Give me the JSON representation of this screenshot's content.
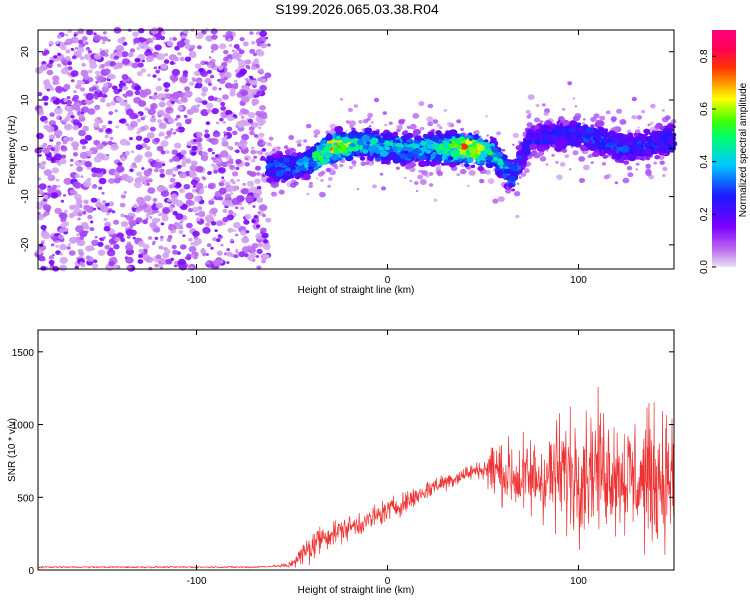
{
  "title": "S199.2026.065.03.38.R04",
  "chart_data": [
    {
      "type": "heatmap",
      "title": "S199.2026.065.03.38.R04",
      "xlabel": "Height of straight line (km)",
      "ylabel": "Frequency (Hz)",
      "xlim": [
        -183,
        150
      ],
      "ylim": [
        -25,
        24.5
      ],
      "xticks": [
        -100,
        0,
        100
      ],
      "yticks": [
        -20,
        -10,
        0,
        10,
        20
      ],
      "colorbar": {
        "label": "Normalized spectral amplitude",
        "range": [
          0,
          0.9
        ],
        "ticks": [
          0.0,
          0.2,
          0.4,
          0.6,
          0.8
        ]
      },
      "signal_center_freq": [
        [
          -62,
          -4
        ],
        [
          -45,
          -4
        ],
        [
          -30,
          0
        ],
        [
          -15,
          1
        ],
        [
          0,
          0
        ],
        [
          20,
          0
        ],
        [
          40,
          0
        ],
        [
          55,
          -1
        ],
        [
          65,
          -6
        ],
        [
          75,
          2
        ],
        [
          100,
          3
        ],
        [
          125,
          0
        ],
        [
          150,
          2
        ]
      ],
      "signal_peak_amplitude": [
        [
          -62,
          0.35
        ],
        [
          -40,
          0.45
        ],
        [
          -28,
          0.85
        ],
        [
          -15,
          0.55
        ],
        [
          5,
          0.5
        ],
        [
          25,
          0.5
        ],
        [
          40,
          0.85
        ],
        [
          60,
          0.45
        ],
        [
          75,
          0.3
        ],
        [
          110,
          0.35
        ],
        [
          150,
          0.35
        ]
      ],
      "noise_region": [
        -183,
        -62
      ]
    },
    {
      "type": "line",
      "xlabel": "Height of straight line (km)",
      "ylabel": "SNR (10 * v/v)",
      "xlim": [
        -183,
        150
      ],
      "ylim": [
        0,
        1650
      ],
      "xticks": [
        -100,
        0,
        100
      ],
      "yticks": [
        0,
        500,
        1000,
        1500
      ],
      "series": [
        {
          "name": "SNR",
          "color": "#ee3333",
          "envelope_mean": [
            [
              -183,
              20
            ],
            [
              -70,
              20
            ],
            [
              -52,
              30
            ],
            [
              -45,
              100
            ],
            [
              -35,
              220
            ],
            [
              -25,
              270
            ],
            [
              -10,
              340
            ],
            [
              0,
              410
            ],
            [
              10,
              470
            ],
            [
              25,
              580
            ],
            [
              45,
              680
            ],
            [
              55,
              700
            ],
            [
              70,
              620
            ],
            [
              90,
              660
            ],
            [
              110,
              720
            ],
            [
              130,
              620
            ],
            [
              150,
              640
            ]
          ],
          "envelope_spread": [
            [
              -183,
              8
            ],
            [
              -60,
              8
            ],
            [
              -50,
              40
            ],
            [
              -40,
              180
            ],
            [
              -30,
              120
            ],
            [
              -10,
              120
            ],
            [
              10,
              110
            ],
            [
              30,
              90
            ],
            [
              50,
              80
            ],
            [
              55,
              300
            ],
            [
              80,
              450
            ],
            [
              100,
              650
            ],
            [
              120,
              550
            ],
            [
              140,
              700
            ],
            [
              150,
              600
            ]
          ]
        }
      ]
    }
  ]
}
